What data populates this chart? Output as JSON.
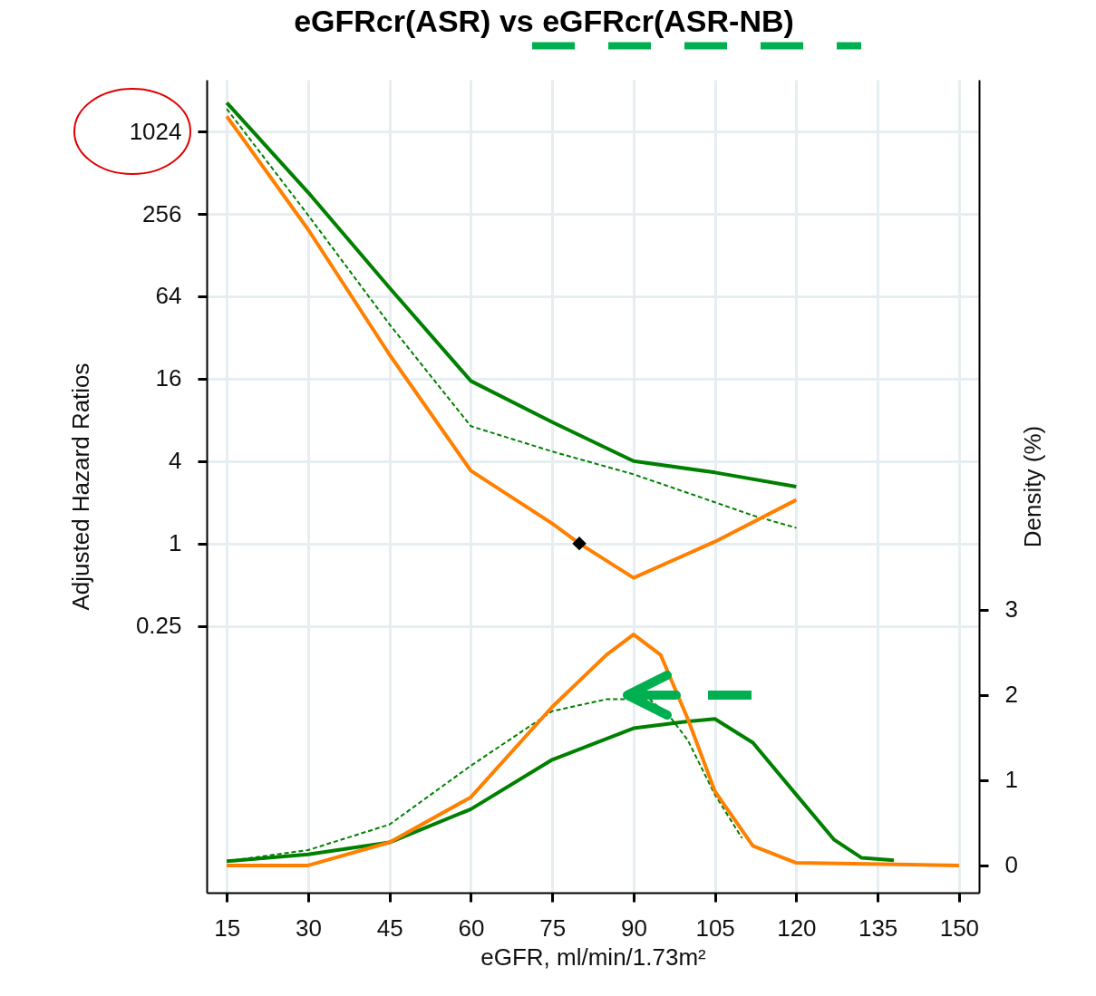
{
  "chart_data": {
    "type": "line",
    "title": "eGFRcr(ASR) vs eGFRcr(ASR-NB)",
    "xlabel": "eGFR, ml/min/1.73m²",
    "ylabel": "Adjusted Hazard Ratios",
    "y2label": "Density (%)",
    "xlim": [
      11.3,
      153.7
    ],
    "xticks": [
      15,
      30,
      45,
      60,
      75,
      90,
      105,
      120,
      135,
      150
    ],
    "ylim": [
      0.0028,
      2450
    ],
    "yticks": [
      0.25,
      1,
      4,
      16,
      64,
      256,
      1024
    ],
    "y2lim": [
      -0.32,
      9.22
    ],
    "y2ticks": [
      0,
      1,
      2,
      3
    ],
    "log": "y",
    "grid": true,
    "series": [
      {
        "type": "line",
        "color": "#008000",
        "line_style": "solid",
        "x": [
          15,
          30,
          45,
          60,
          75,
          90,
          105,
          120
        ],
        "values": [
          1665,
          368,
          74,
          15.4,
          7.7,
          4.0,
          3.3,
          2.6
        ]
      },
      {
        "type": "line",
        "color": "#008000",
        "line_style": "dashed",
        "x": [
          15,
          30,
          45,
          60,
          75,
          90,
          105,
          112,
          120
        ],
        "values": [
          1500,
          251,
          40,
          7.2,
          4.7,
          3.2,
          2.0,
          1.6,
          1.3
        ]
      },
      {
        "type": "line",
        "color": "#ff8000",
        "line_style": "solid",
        "x": [
          15,
          30,
          45,
          60,
          75,
          80,
          90,
          105,
          120
        ],
        "values": [
          1325,
          197,
          24,
          3.4,
          1.4,
          1.0,
          0.56,
          1.03,
          2.08
        ]
      },
      {
        "type": "scatter",
        "color": "#000000",
        "marker": "diamond",
        "x": [
          80
        ],
        "values": [
          1
        ]
      },
      {
        "type": "line",
        "axis": "y2",
        "color": "#008000",
        "line_style": "solid",
        "x": [
          15,
          30,
          45,
          60,
          75,
          90,
          100,
          105,
          112,
          120,
          127,
          132,
          138
        ],
        "values": [
          0.05,
          0.13,
          0.27,
          0.66,
          1.24,
          1.61,
          1.69,
          1.72,
          1.44,
          0.83,
          0.3,
          0.09,
          0.06
        ]
      },
      {
        "type": "line",
        "axis": "y2",
        "color": "#008000",
        "line_style": "dashed",
        "x": [
          15,
          30,
          45,
          60,
          75,
          85,
          93,
          97,
          100,
          105,
          110
        ],
        "values": [
          0.05,
          0.18,
          0.48,
          1.17,
          1.81,
          1.95,
          1.95,
          1.72,
          1.47,
          0.83,
          0.32
        ]
      },
      {
        "type": "line",
        "axis": "y2",
        "color": "#ff8000",
        "line_style": "solid",
        "x": [
          15,
          30,
          45,
          60,
          75,
          85,
          90,
          95,
          100,
          105,
          112,
          120,
          150
        ],
        "values": [
          0,
          0,
          0.27,
          0.8,
          1.86,
          2.47,
          2.71,
          2.47,
          1.72,
          0.87,
          0.23,
          0.03,
          0
        ]
      }
    ]
  }
}
